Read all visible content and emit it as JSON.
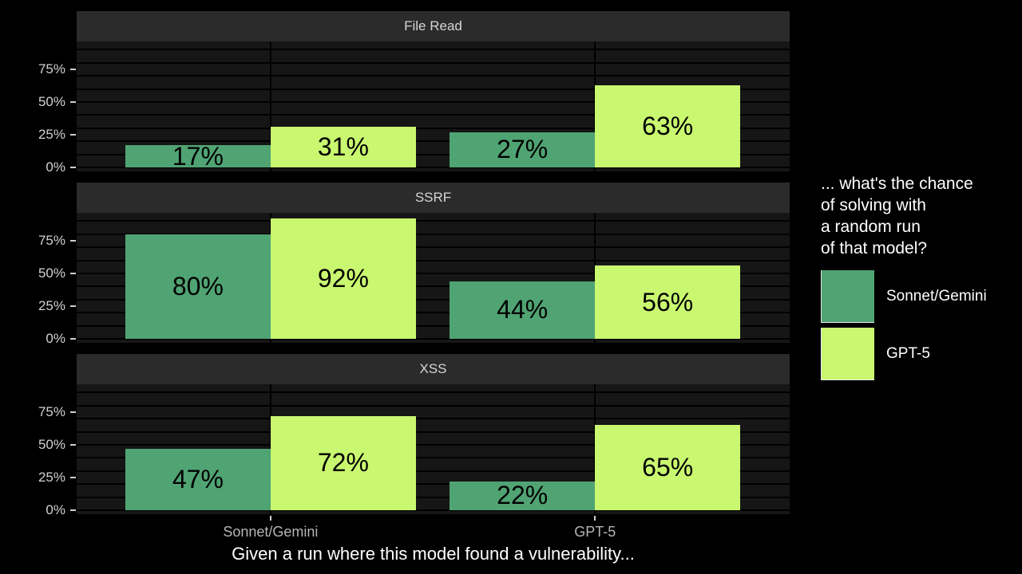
{
  "chart_data": {
    "type": "bar",
    "orientation": "vertical",
    "facets": [
      "File Read",
      "SSRF",
      "XSS"
    ],
    "categories": [
      "Sonnet/Gemini",
      "GPT-5"
    ],
    "series": [
      {
        "name": "Sonnet/Gemini",
        "color": "#50a373",
        "values": {
          "File Read": [
            17,
            27
          ],
          "SSRF": [
            80,
            44
          ],
          "XSS": [
            47,
            22
          ]
        }
      },
      {
        "name": "GPT-5",
        "color": "#c9f770",
        "values": {
          "File Read": [
            31,
            63
          ],
          "SSRF": [
            92,
            56
          ],
          "XSS": [
            72,
            65
          ]
        }
      }
    ],
    "value_unit": "%",
    "bar_labels": [
      "17%",
      "31%",
      "27%",
      "63%",
      "80%",
      "92%",
      "44%",
      "56%",
      "47%",
      "72%",
      "22%",
      "65%"
    ],
    "ylim": [
      0,
      100
    ],
    "y_ticks": [
      {
        "value": 0,
        "label": "0%"
      },
      {
        "value": 25,
        "label": "25%"
      },
      {
        "value": 50,
        "label": "50%"
      },
      {
        "value": 75,
        "label": "75%"
      }
    ],
    "grid": "on",
    "legend_position": "right"
  },
  "legend": {
    "title": "... what's the chance\nof solving with\na random run\nof that model?",
    "items": [
      {
        "label": "Sonnet/Gemini"
      },
      {
        "label": "GPT-5"
      }
    ]
  },
  "x_axis": {
    "labels": [
      "Sonnet/Gemini",
      "GPT-5"
    ]
  },
  "caption": "Given a run where this model found a vulnerability...",
  "colors": {
    "background": "#000000",
    "panel_background": "#161616",
    "strip_background": "#2b2b2b",
    "gridline": "#000000",
    "series_sonnet_gemini": "#50a373",
    "series_gpt5": "#c9f770",
    "axis_text": "#d2d2d2",
    "x_axis_text": "#b5b5b5",
    "caption_text": "#ffffff"
  }
}
